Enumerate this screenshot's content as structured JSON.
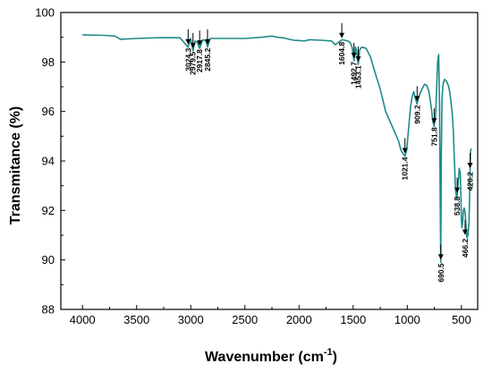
{
  "chart_data": {
    "type": "line",
    "title": "",
    "xlabel": "Wavenumber (cm",
    "xlabel_sup": "-1",
    "xlabel_suffix": ")",
    "ylabel": "Transmitance (%)",
    "xlim": [
      4200,
      350
    ],
    "ylim": [
      88,
      100
    ],
    "x_reversed": true,
    "grid": false,
    "colors": {
      "series": "#1f8a8a",
      "axis": "#000000"
    },
    "x_ticks": [
      4000,
      3500,
      3000,
      2500,
      2000,
      1500,
      1000,
      500
    ],
    "y_ticks": [
      88,
      90,
      92,
      94,
      96,
      98,
      100
    ],
    "series": [
      {
        "x": [
          4000,
          3800,
          3700,
          3650,
          3500,
          3300,
          3100,
          3024,
          3000,
          2979,
          2960,
          2940,
          2918,
          2890,
          2860,
          2845,
          2820,
          2700,
          2500,
          2350,
          2250,
          2200,
          2150,
          2100,
          2050,
          2000,
          1950,
          1900,
          1800,
          1700,
          1665,
          1620,
          1600,
          1550,
          1530,
          1510,
          1492,
          1478,
          1470,
          1453,
          1440,
          1420,
          1380,
          1340,
          1300,
          1250,
          1200,
          1150,
          1100,
          1080,
          1060,
          1040,
          1021,
          1005,
          990,
          970,
          955,
          940,
          930,
          920,
          909,
          900,
          880,
          860,
          840,
          820,
          800,
          780,
          765,
          752,
          740,
          730,
          720,
          710,
          702,
          695,
          691,
          686,
          680,
          672,
          665,
          655,
          645,
          635,
          625,
          615,
          605,
          595,
          585,
          575,
          565,
          555,
          545,
          539,
          530,
          520,
          510,
          505,
          500,
          495,
          490,
          482,
          475,
          466,
          458,
          450,
          440,
          430,
          425,
          420,
          415,
          410
        ],
        "y": [
          99.1,
          99.08,
          99.05,
          98.92,
          98.95,
          98.98,
          98.98,
          98.6,
          98.95,
          98.45,
          98.85,
          98.8,
          98.55,
          98.9,
          98.85,
          98.6,
          98.95,
          98.95,
          98.95,
          99.0,
          99.05,
          99.0,
          98.98,
          98.93,
          98.88,
          98.87,
          98.85,
          98.9,
          98.88,
          98.85,
          98.7,
          98.85,
          98.9,
          98.85,
          98.8,
          98.6,
          98.05,
          98.6,
          98.5,
          97.9,
          98.5,
          98.6,
          98.55,
          98.2,
          97.6,
          96.9,
          96.0,
          95.5,
          95.0,
          94.8,
          94.45,
          94.3,
          94.2,
          94.45,
          95.2,
          96.2,
          96.6,
          96.8,
          96.6,
          96.45,
          96.3,
          96.5,
          96.75,
          96.95,
          97.1,
          97.05,
          96.8,
          96.2,
          95.6,
          95.4,
          95.8,
          96.8,
          98.0,
          98.3,
          96.2,
          92.0,
          89.9,
          94.0,
          96.5,
          97.0,
          97.2,
          97.3,
          97.25,
          97.2,
          97.1,
          96.95,
          96.7,
          96.35,
          95.9,
          95.2,
          94.0,
          92.85,
          92.5,
          92.6,
          93.1,
          93.7,
          93.5,
          92.6,
          91.6,
          91.3,
          91.5,
          92.0,
          92.1,
          91.9,
          91.4,
          90.9,
          91.0,
          91.5,
          92.5,
          93.6,
          94.4,
          94.5
        ]
      }
    ],
    "annotations": [
      {
        "label": "3024.3",
        "x": 3024.3,
        "y": 98.6
      },
      {
        "label": "2979.5",
        "x": 2979.5,
        "y": 98.45
      },
      {
        "label": "2917.8",
        "x": 2917.8,
        "y": 98.55
      },
      {
        "label": "2845.2",
        "x": 2845.2,
        "y": 98.6
      },
      {
        "label": "1604.8",
        "x": 1604.8,
        "y": 98.85
      },
      {
        "label": "1492.7",
        "x": 1492.7,
        "y": 98.05
      },
      {
        "label": "1453.1",
        "x": 1453.1,
        "y": 97.9
      },
      {
        "label": "1021.4",
        "x": 1021.4,
        "y": 94.2
      },
      {
        "label": "909.2",
        "x": 909.2,
        "y": 96.3
      },
      {
        "label": "751.8",
        "x": 751.8,
        "y": 95.4
      },
      {
        "label": "690.5",
        "x": 690.5,
        "y": 89.9
      },
      {
        "label": "538.8",
        "x": 538.8,
        "y": 92.6
      },
      {
        "label": "466.2",
        "x": 466.2,
        "y": 90.9
      },
      {
        "label": "420.2",
        "x": 420.2,
        "y": 93.6
      }
    ]
  }
}
